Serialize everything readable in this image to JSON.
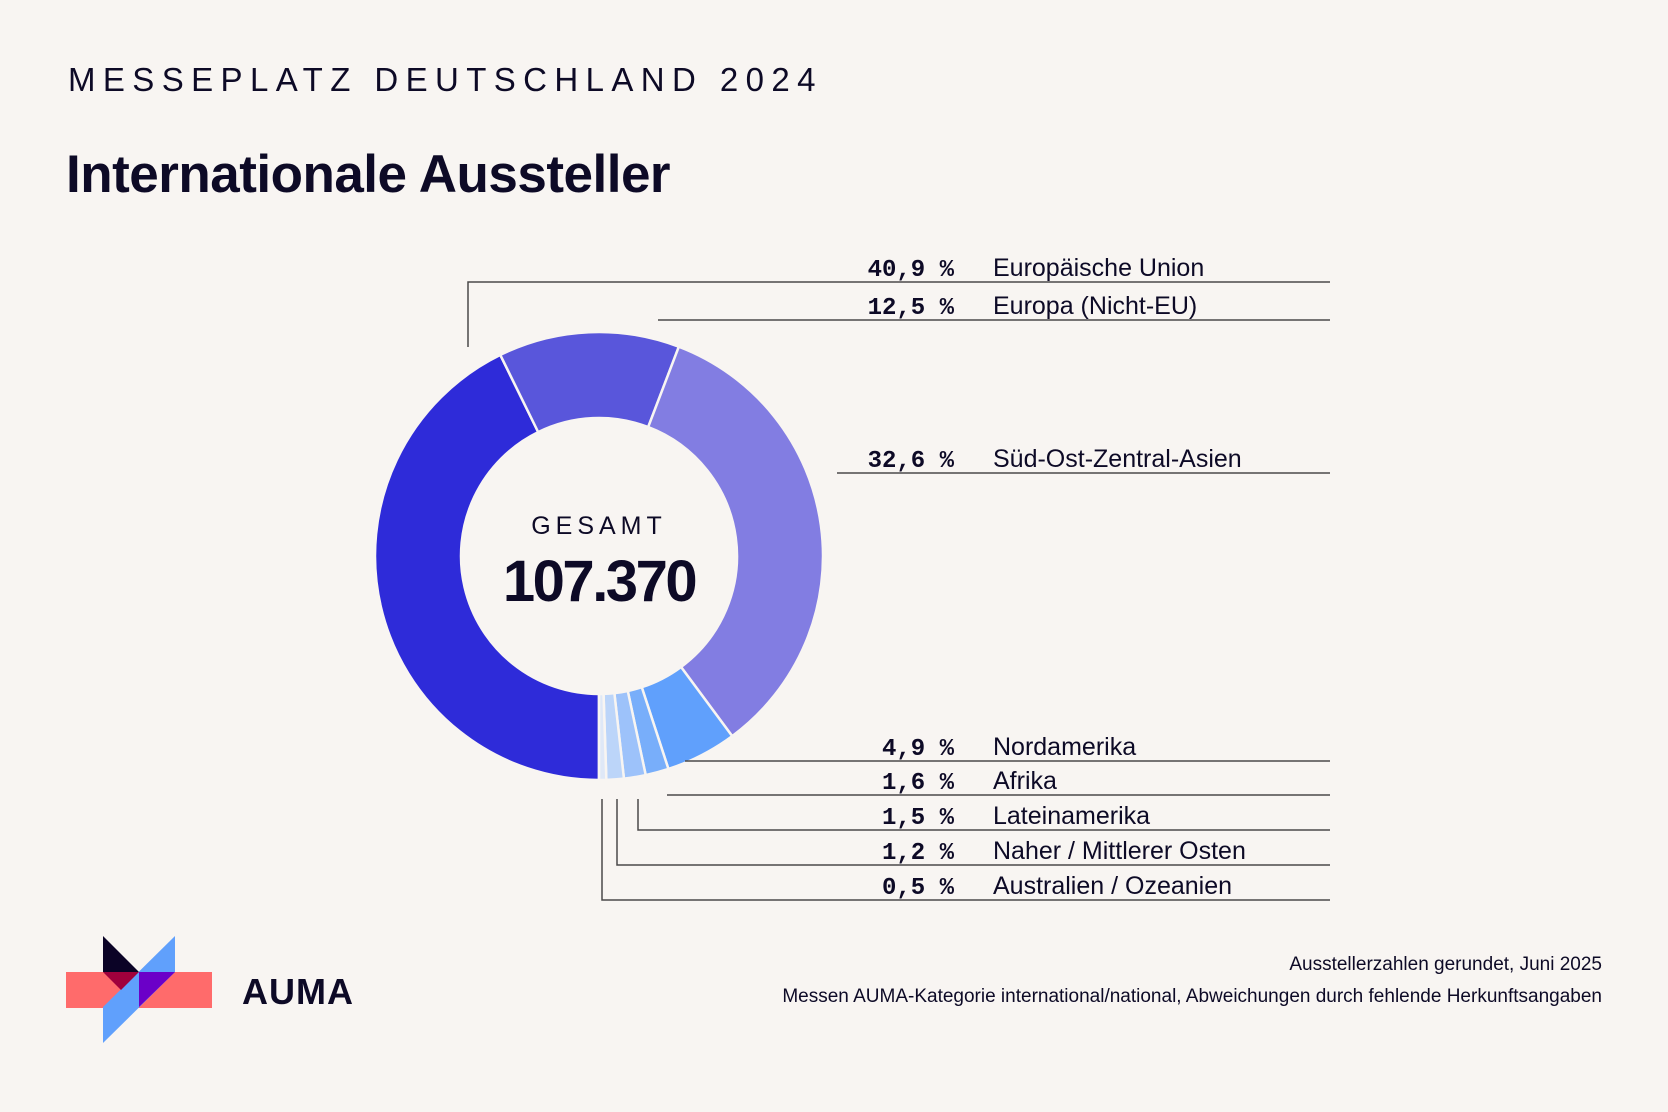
{
  "header": {
    "kicker": "MESSEPLATZ DEUTSCHLAND 2024",
    "title": "Internationale Aussteller"
  },
  "center": {
    "label": "GESAMT",
    "value": "107.370"
  },
  "chart_data": {
    "type": "pie",
    "variant": "donut",
    "title": "Internationale Aussteller",
    "total_label": "GESAMT",
    "total": 107370,
    "unit": "%",
    "start": "bottom",
    "direction": "clockwise",
    "legend_placement": "right",
    "slices": [
      {
        "label": "Europäische Union",
        "value": 40.9,
        "display": "40,9 %",
        "color": "#2e2bd9"
      },
      {
        "label": "Europa (Nicht-EU)",
        "value": 12.5,
        "display": "12,5 %",
        "color": "#5956db"
      },
      {
        "label": "Süd-Ost-Zentral-Asien",
        "value": 32.6,
        "display": "32,6 %",
        "color": "#827de2"
      },
      {
        "label": "Nordamerika",
        "value": 4.9,
        "display": "4,9 %",
        "color": "#60a0fc"
      },
      {
        "label": "Afrika",
        "value": 1.6,
        "display": "1,6 %",
        "color": "#78aefa"
      },
      {
        "label": "Lateinamerika",
        "value": 1.5,
        "display": "1,5 %",
        "color": "#9dc2fa"
      },
      {
        "label": "Naher / Mittlerer Osten",
        "value": 1.2,
        "display": "1,2 %",
        "color": "#bcd5f9"
      },
      {
        "label": "Australien / Ozeanien",
        "value": 0.5,
        "display": "0,5 %",
        "color": "#dfe8f7"
      }
    ]
  },
  "brand": {
    "name": "AUMA",
    "logo_colors": {
      "bar": "#ff6b6b",
      "dark": "#0b0326",
      "blue": "#60a0fc",
      "overlap_red": "#a0003c",
      "overlap_purple": "#6b00c8"
    }
  },
  "footer": {
    "line1": "Ausstellerzahlen gerundet, Juni 2025",
    "line2": "Messen AUMA-Kategorie international/national, Abweichungen durch fehlende Herkunftsangaben"
  }
}
